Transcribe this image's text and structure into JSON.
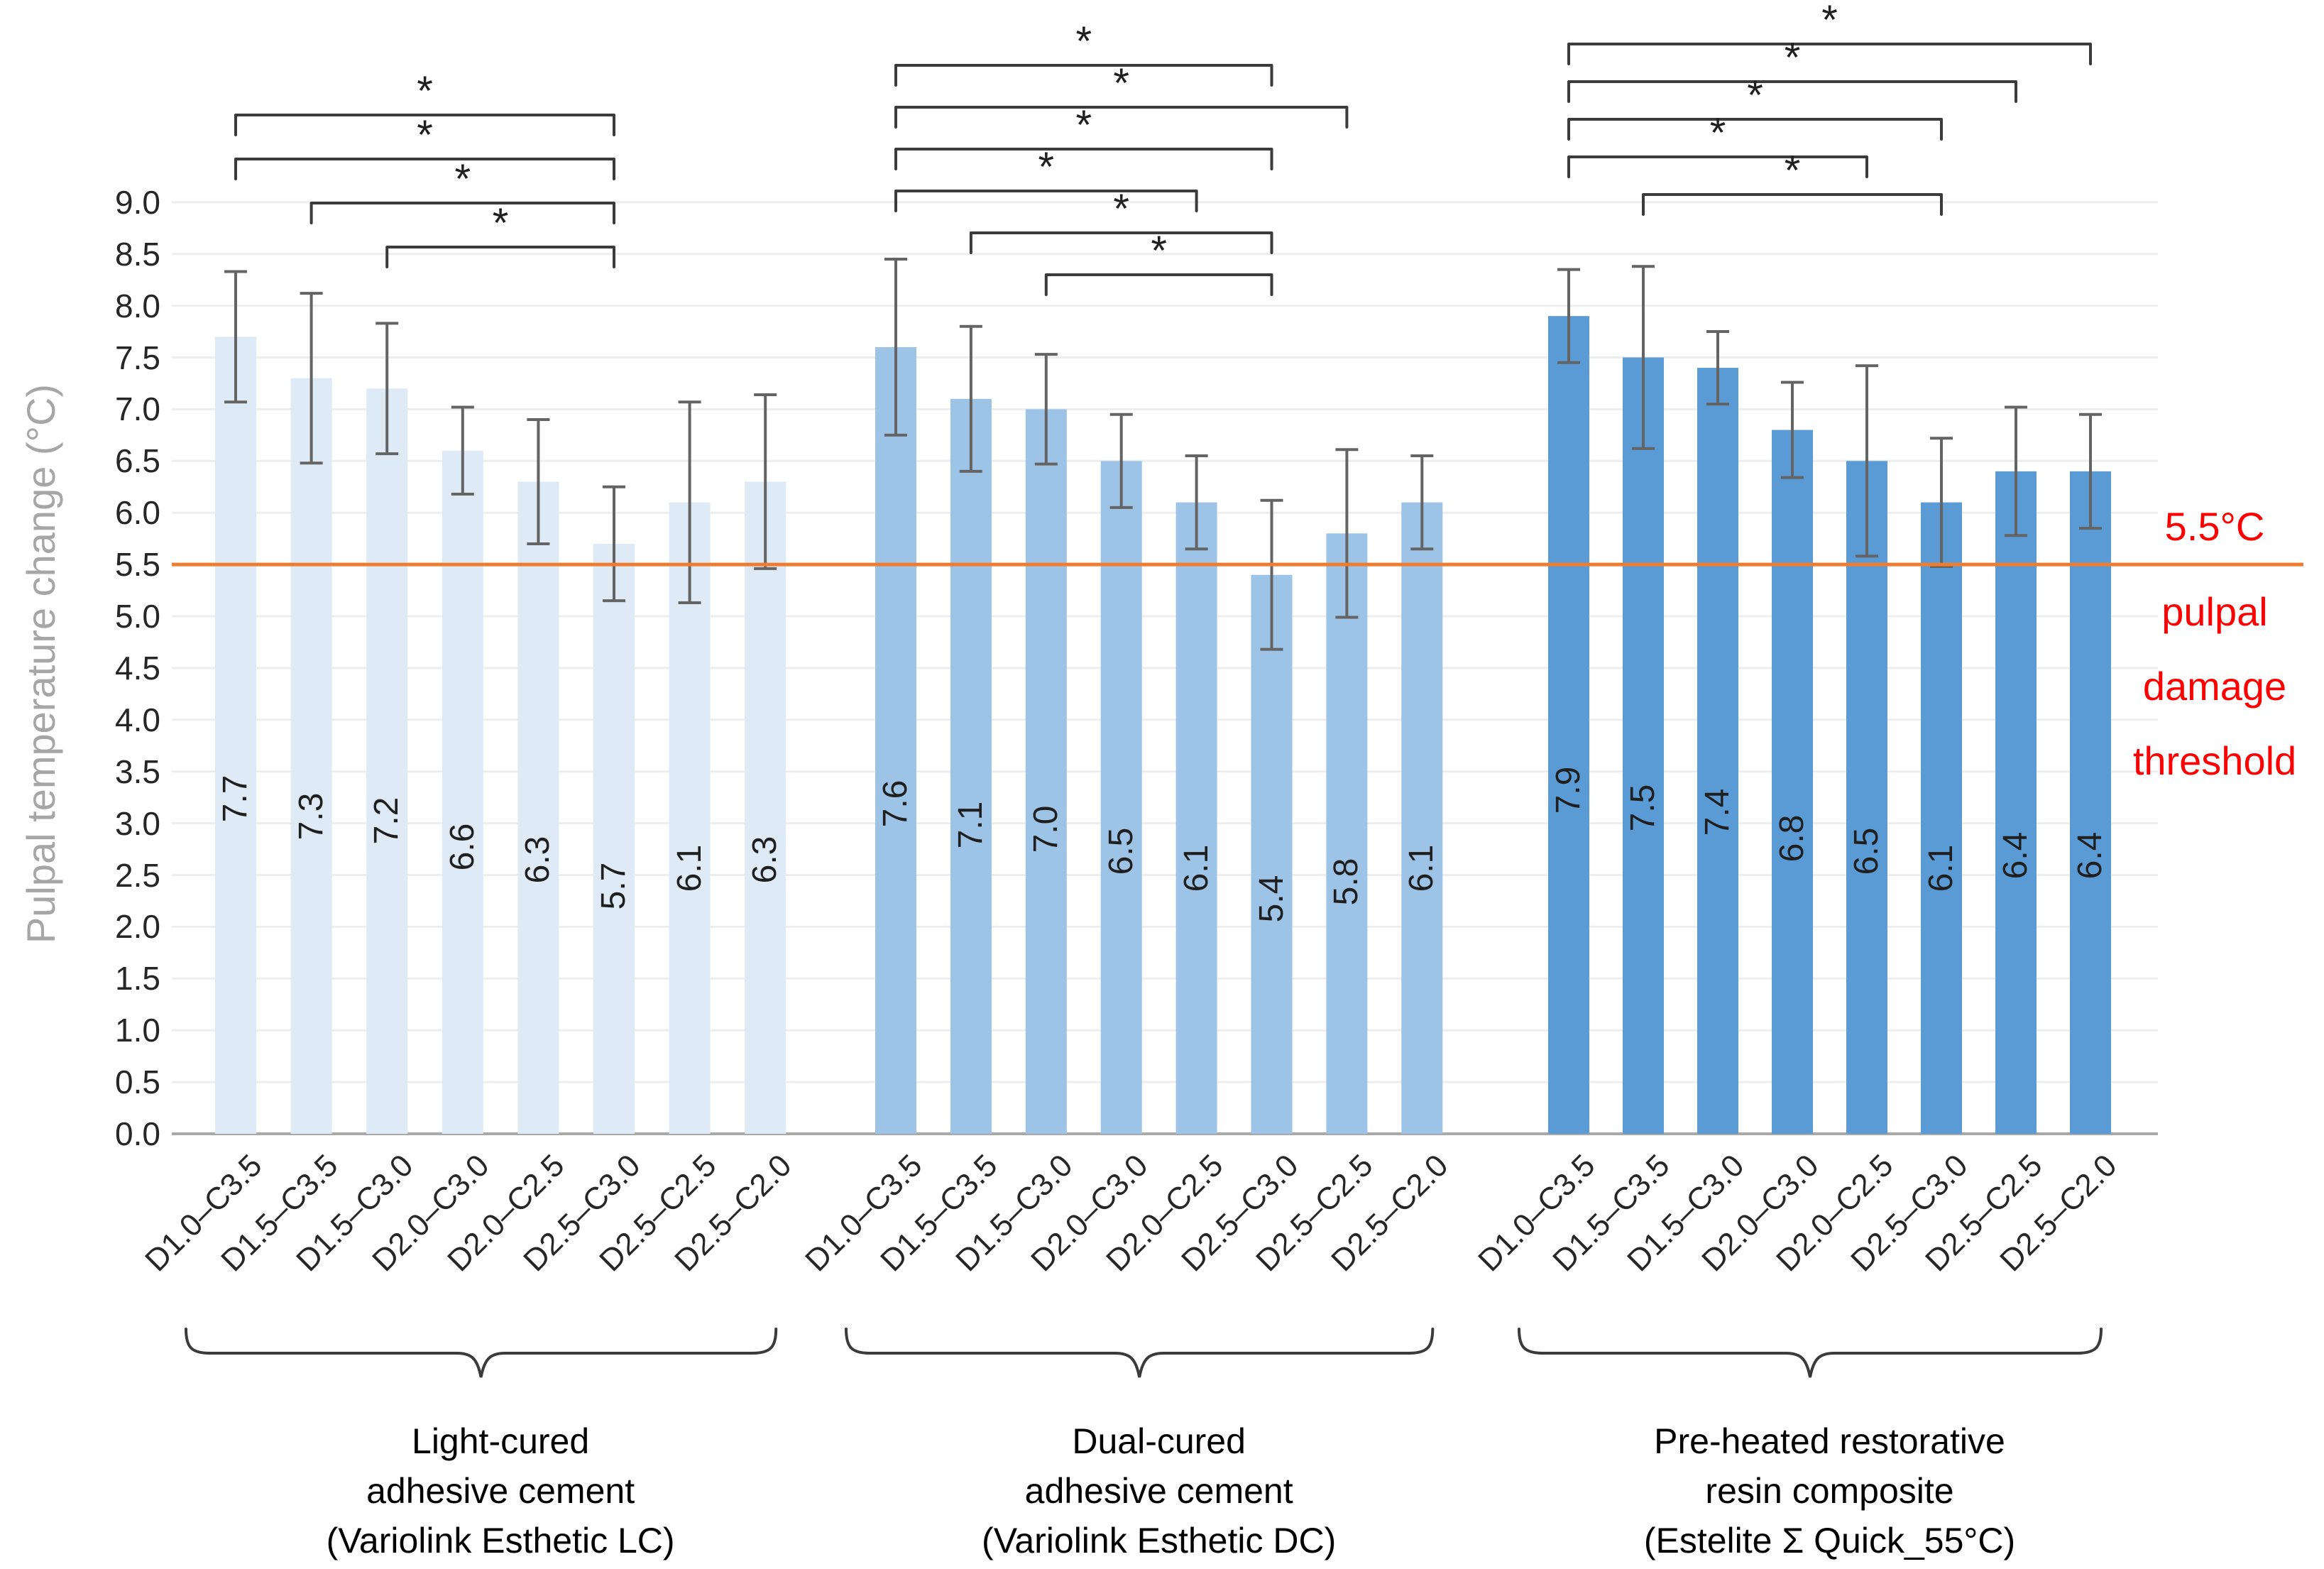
{
  "chart_data": {
    "type": "bar",
    "title": "",
    "ylabel": "Pulpal temperature change (°C)",
    "xlabel": "",
    "ylim": [
      0,
      9
    ],
    "ytick_step": 0.5,
    "ytick_labels": [
      "0.0",
      "0.5",
      "1.0",
      "1.5",
      "2.0",
      "2.5",
      "3.0",
      "3.5",
      "4.0",
      "4.5",
      "5.0",
      "5.5",
      "6.0",
      "6.5",
      "7.0",
      "7.5",
      "8.0",
      "8.5",
      "9.0"
    ],
    "grid": "on",
    "bar_label_decimals": 1,
    "categories": [
      "D1.0–C3.5",
      "D1.5–C3.5",
      "D1.5–C3.0",
      "D2.0–C3.0",
      "D2.0–C2.5",
      "D2.5–C3.0",
      "D2.5–C2.5",
      "D2.5–C2.0"
    ],
    "series": [
      {
        "name": "Light-cured adhesive cement (Variolink Esthetic LC)",
        "caption_lines": [
          "Light-cured",
          "adhesive cement",
          "(Variolink Esthetic LC)"
        ],
        "color": "#DEEBF7",
        "values": [
          7.7,
          7.3,
          7.2,
          6.6,
          6.3,
          5.7,
          6.1,
          6.3
        ],
        "errors": [
          0.63,
          0.82,
          0.63,
          0.42,
          0.6,
          0.55,
          0.97,
          0.84
        ],
        "significance_brackets": [
          {
            "from": 1,
            "to": 6,
            "label": "*"
          },
          {
            "from": 1,
            "to": 6,
            "label": "*"
          },
          {
            "from": 2,
            "to": 6,
            "label": "*"
          },
          {
            "from": 3,
            "to": 6,
            "label": "*"
          }
        ]
      },
      {
        "name": "Dual-cured adhesive cement (Variolink Esthetic DC)",
        "caption_lines": [
          "Dual-cured",
          "adhesive cement",
          "(Variolink Esthetic DC)"
        ],
        "color": "#9DC3E6",
        "values": [
          7.6,
          7.1,
          7.0,
          6.5,
          6.1,
          5.4,
          5.8,
          6.1
        ],
        "errors": [
          0.85,
          0.7,
          0.53,
          0.45,
          0.45,
          0.72,
          0.81,
          0.45
        ],
        "significance_brackets": [
          {
            "from": 1,
            "to": 6,
            "label": "*"
          },
          {
            "from": 1,
            "to": 7,
            "label": "*"
          },
          {
            "from": 1,
            "to": 6,
            "label": "*"
          },
          {
            "from": 1,
            "to": 5,
            "label": "*"
          },
          {
            "from": 2,
            "to": 6,
            "label": "*"
          },
          {
            "from": 3,
            "to": 6,
            "label": "*"
          }
        ]
      },
      {
        "name": "Pre-heated restorative resin composite (Estelite Σ Quick_55°C)",
        "caption_lines": [
          "Pre-heated restorative",
          "resin composite",
          "(Estelite Σ Quick_55°C)"
        ],
        "color": "#5B9BD5",
        "values": [
          7.9,
          7.5,
          7.4,
          6.8,
          6.5,
          6.1,
          6.4,
          6.4
        ],
        "errors": [
          0.45,
          0.88,
          0.35,
          0.46,
          0.92,
          0.62,
          0.62,
          0.55
        ],
        "significance_brackets": [
          {
            "from": 1,
            "to": 8,
            "label": "*"
          },
          {
            "from": 1,
            "to": 7,
            "label": "*"
          },
          {
            "from": 1,
            "to": 6,
            "label": "*"
          },
          {
            "from": 1,
            "to": 5,
            "label": "*"
          },
          {
            "from": 2,
            "to": 6,
            "label": "*"
          }
        ]
      }
    ],
    "threshold": {
      "value": 5.5,
      "label_lines": [
        "5.5°C",
        "pulpal",
        "damage",
        "threshold"
      ],
      "line_color": "#ED7D31",
      "text_color": "#FF0000"
    },
    "colors": {
      "error_bar": "#646464",
      "bracket": "#3B3B3B",
      "baseline": "#A9A9A9",
      "gridline": "#EEEEEE",
      "axis_title": "#A6A6A6",
      "tick_text": "#262626",
      "bar_label": "#1F1F1F"
    },
    "legend_position": "none"
  }
}
